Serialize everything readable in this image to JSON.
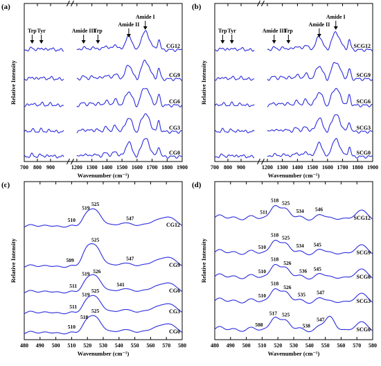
{
  "colors": {
    "line": "#2a2adc",
    "axis": "#000000",
    "text": "#000000"
  },
  "chart_data": [
    {
      "panel": "(a)",
      "type": "line",
      "xlabel": "Wavenumber (cm⁻¹)",
      "ylabel": "Relative Intensity",
      "x_axis_break": [
        1000,
        1200
      ],
      "x_ticks": [
        700,
        800,
        900,
        1200,
        1300,
        1400,
        1500,
        1600,
        1700,
        1800,
        1900
      ],
      "xlim": [
        700,
        1900
      ],
      "series": [
        {
          "name": "CG12",
          "offset": 4
        },
        {
          "name": "CG9",
          "offset": 3
        },
        {
          "name": "CG6",
          "offset": 2
        },
        {
          "name": "CG3",
          "offset": 1
        },
        {
          "name": "CG0",
          "offset": 0
        }
      ],
      "annotations": [
        {
          "text": "Trp",
          "x": 760,
          "arrow": true
        },
        {
          "text": "Tyr",
          "x": 830,
          "arrow": true
        },
        {
          "text": "Amide III",
          "x": 1245,
          "arrow": true
        },
        {
          "text": "Trp",
          "x": 1340,
          "arrow": true
        },
        {
          "text": "Amide II",
          "x": 1545,
          "arrow": true
        },
        {
          "text": "Amide I",
          "x": 1655,
          "arrow": true
        }
      ]
    },
    {
      "panel": "(b)",
      "type": "line",
      "xlabel": "Wavenumber (cm⁻¹)",
      "ylabel": "Relative Intensity",
      "x_axis_break": [
        1000,
        1200
      ],
      "x_ticks": [
        700,
        800,
        900,
        1200,
        1300,
        1400,
        1500,
        1600,
        1700,
        1800,
        1900
      ],
      "xlim": [
        700,
        1900
      ],
      "series": [
        {
          "name": "SCG12",
          "offset": 4
        },
        {
          "name": "SCG9",
          "offset": 3
        },
        {
          "name": "SCG6",
          "offset": 2
        },
        {
          "name": "SCG3",
          "offset": 1
        },
        {
          "name": "SCG0",
          "offset": 0
        }
      ],
      "annotations": [
        {
          "text": "Trp",
          "x": 760,
          "arrow": true
        },
        {
          "text": "Tyr",
          "x": 830,
          "arrow": true
        },
        {
          "text": "Amide III",
          "x": 1245,
          "arrow": true
        },
        {
          "text": "Trp",
          "x": 1340,
          "arrow": true
        },
        {
          "text": "Amide II",
          "x": 1545,
          "arrow": true
        },
        {
          "text": "Amide I",
          "x": 1655,
          "arrow": true
        }
      ]
    },
    {
      "panel": "(c)",
      "type": "line",
      "xlabel": "Wavenumber (cm⁻¹)",
      "ylabel": "Relative Intensity",
      "x_ticks": [
        480,
        490,
        500,
        510,
        520,
        530,
        540,
        550,
        560,
        570,
        580
      ],
      "xlim": [
        480,
        580
      ],
      "series": [
        {
          "name": "CG12",
          "offset": 4
        },
        {
          "name": "CG9",
          "offset": 3
        },
        {
          "name": "CG6",
          "offset": 2
        },
        {
          "name": "CG3",
          "offset": 1
        },
        {
          "name": "CG0",
          "offset": 0
        }
      ],
      "peak_labels": [
        {
          "series": "CG12",
          "labels": [
            {
              "text": "510",
              "x": 510
            },
            {
              "text": "519",
              "x": 519
            },
            {
              "text": "525",
              "x": 525
            },
            {
              "text": "547",
              "x": 547
            }
          ]
        },
        {
          "series": "CG9",
          "labels": [
            {
              "text": "509",
              "x": 509
            },
            {
              "text": "525",
              "x": 525
            },
            {
              "text": "547",
              "x": 547
            }
          ]
        },
        {
          "series": "CG6",
          "labels": [
            {
              "text": "511",
              "x": 511
            },
            {
              "text": "519",
              "x": 519
            },
            {
              "text": "526",
              "x": 526
            },
            {
              "text": "541",
              "x": 541
            }
          ]
        },
        {
          "series": "CG3",
          "labels": [
            {
              "text": "511",
              "x": 511
            },
            {
              "text": "519",
              "x": 519
            },
            {
              "text": "525",
              "x": 525
            }
          ]
        },
        {
          "series": "CG0",
          "labels": [
            {
              "text": "510",
              "x": 510
            },
            {
              "text": "518",
              "x": 518
            },
            {
              "text": "525",
              "x": 525
            }
          ]
        }
      ]
    },
    {
      "panel": "(d)",
      "type": "line",
      "xlabel": "Wavenumber (cm⁻¹)",
      "ylabel": "Relative Intensity",
      "x_ticks": [
        480,
        490,
        500,
        510,
        520,
        530,
        540,
        550,
        560,
        570,
        580
      ],
      "xlim": [
        480,
        580
      ],
      "series": [
        {
          "name": "SCG12",
          "offset": 4
        },
        {
          "name": "SCG9",
          "offset": 3
        },
        {
          "name": "SCG6",
          "offset": 2
        },
        {
          "name": "SCG3",
          "offset": 1
        },
        {
          "name": "SCG0",
          "offset": 0
        }
      ],
      "peak_labels": [
        {
          "series": "SCG12",
          "labels": [
            {
              "text": "511",
              "x": 511
            },
            {
              "text": "518",
              "x": 518
            },
            {
              "text": "525",
              "x": 525
            },
            {
              "text": "534",
              "x": 534
            },
            {
              "text": "546",
              "x": 546
            }
          ]
        },
        {
          "series": "SCG9",
          "labels": [
            {
              "text": "510",
              "x": 510
            },
            {
              "text": "518",
              "x": 518
            },
            {
              "text": "525",
              "x": 525
            },
            {
              "text": "534",
              "x": 534
            },
            {
              "text": "545",
              "x": 545
            }
          ]
        },
        {
          "series": "SCG6",
          "labels": [
            {
              "text": "510",
              "x": 510
            },
            {
              "text": "518",
              "x": 518
            },
            {
              "text": "526",
              "x": 526
            },
            {
              "text": "536",
              "x": 536
            },
            {
              "text": "545",
              "x": 545
            }
          ]
        },
        {
          "series": "SCG3",
          "labels": [
            {
              "text": "510",
              "x": 510
            },
            {
              "text": "518",
              "x": 518
            },
            {
              "text": "526",
              "x": 526
            },
            {
              "text": "535",
              "x": 535
            },
            {
              "text": "547",
              "x": 547
            }
          ]
        },
        {
          "series": "SCG0",
          "labels": [
            {
              "text": "508",
              "x": 508
            },
            {
              "text": "517",
              "x": 517
            },
            {
              "text": "525",
              "x": 525
            },
            {
              "text": "538",
              "x": 538
            },
            {
              "text": "547",
              "x": 547
            }
          ]
        }
      ]
    }
  ]
}
